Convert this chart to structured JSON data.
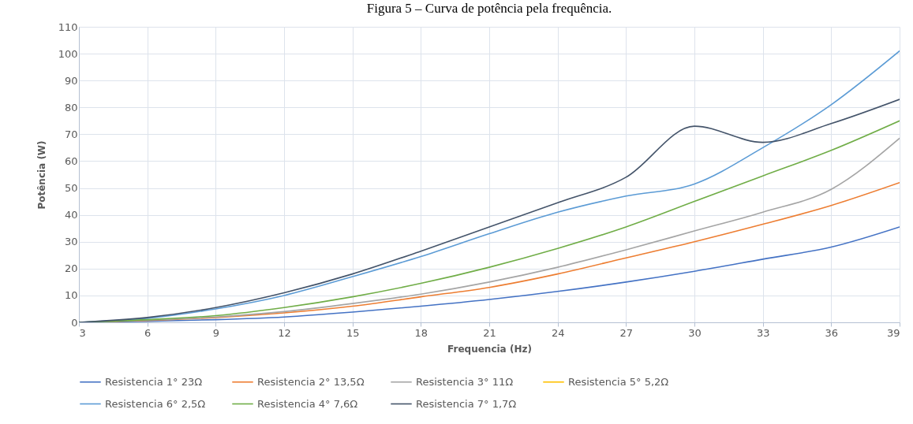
{
  "chart_data": {
    "type": "line",
    "title": "Figura 5 – Curva de potência pela frequência.",
    "xlabel": "Frequencia  (Hz)",
    "ylabel": "Potência (W)",
    "x": [
      3,
      6,
      9,
      12,
      15,
      18,
      21,
      24,
      27,
      30,
      33,
      36,
      39
    ],
    "xlim": [
      3,
      39
    ],
    "xticks": [
      3,
      6,
      9,
      12,
      15,
      18,
      21,
      24,
      27,
      30,
      33,
      36,
      39
    ],
    "ylim": [
      0,
      110
    ],
    "yticks": [
      0,
      10,
      20,
      30,
      40,
      50,
      60,
      70,
      80,
      90,
      100,
      110
    ],
    "grid": true,
    "legend": "bottom",
    "marker": "none",
    "line_style": "solid",
    "series": [
      {
        "name": "Resistencia 1° 23Ω",
        "color": "#4472c4",
        "values": [
          0,
          0.4,
          1,
          2,
          3.8,
          6,
          8.5,
          11.5,
          15,
          19,
          23.5,
          28,
          35.5
        ]
      },
      {
        "name": "Resistencia 2° 13,5Ω",
        "color": "#ed7d31",
        "values": [
          0,
          0.7,
          1.8,
          3.5,
          6,
          9.5,
          13,
          18,
          24,
          30,
          36.5,
          43.5,
          52
        ]
      },
      {
        "name": "Resistencia 3° 11Ω",
        "color": "#a5a5a5",
        "values": [
          0,
          0.8,
          2,
          4,
          7,
          10.5,
          15,
          20.5,
          27,
          34,
          41,
          49.5,
          68.5
        ]
      },
      {
        "name": "Resistencia 5° 5,2Ω",
        "color": "#ffc000",
        "values": [
          null,
          null,
          null,
          null,
          null,
          null,
          null,
          null,
          null,
          null,
          null,
          null,
          null
        ]
      },
      {
        "name": "Resistencia 6° 2,5Ω",
        "color": "#5b9bd5",
        "values": [
          0,
          1.5,
          5,
          10,
          17,
          24.5,
          33,
          41,
          47,
          51.5,
          65,
          81,
          101
        ]
      },
      {
        "name": "Resistencia 4° 7,6Ω",
        "color": "#70ad47",
        "values": [
          0,
          1,
          2.5,
          5.5,
          9.5,
          14.5,
          20.5,
          27.5,
          35.5,
          45,
          54.5,
          64,
          75
        ]
      },
      {
        "name": "Resistencia 7° 1,7Ω",
        "color": "#44546a",
        "values": [
          0,
          1.8,
          5.5,
          11,
          18,
          26.5,
          35.5,
          44.5,
          54,
          73,
          67,
          74,
          83
        ]
      }
    ]
  }
}
